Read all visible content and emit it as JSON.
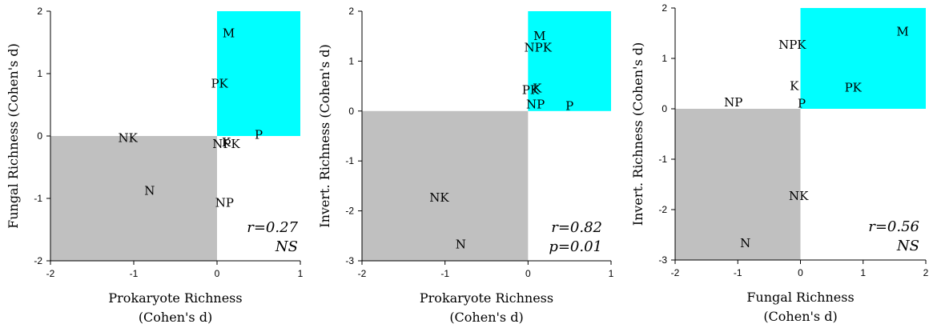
{
  "chart_data": [
    {
      "type": "scatter",
      "xlabel": [
        "Prokaryote Richness",
        "(Cohen's d)"
      ],
      "ylabel": "Fungal Richness (Cohen's d)",
      "xlim": [
        -2,
        1
      ],
      "ylim": [
        -2,
        2
      ],
      "xticks": [
        "-2",
        "-1",
        "0",
        "1"
      ],
      "yticks": [
        "-2",
        "-1",
        "0",
        "1",
        "2"
      ],
      "grid": false,
      "highlight_colors": {
        "positive_quadrant": "#00ffff",
        "negative_quadrant": "#c0c0c0"
      },
      "points": [
        {
          "label": "M",
          "x": 0.14,
          "y": 1.65
        },
        {
          "label": "PK",
          "x": 0.03,
          "y": 0.84
        },
        {
          "label": "P",
          "x": 0.5,
          "y": 0.02
        },
        {
          "label": "NK",
          "x": -1.07,
          "y": -0.03
        },
        {
          "label": "K",
          "x": 0.11,
          "y": -0.1
        },
        {
          "label": "NPK",
          "x": 0.11,
          "y": -0.13
        },
        {
          "label": "N",
          "x": -0.81,
          "y": -0.88
        },
        {
          "label": "NP",
          "x": 0.09,
          "y": -1.07
        }
      ],
      "stats": [
        "r=0.27",
        "NS"
      ]
    },
    {
      "type": "scatter",
      "xlabel": [
        "Prokaryote Richness",
        "(Cohen's d)"
      ],
      "ylabel": "Invert. Richness (Cohen's d)",
      "xlim": [
        -2,
        1
      ],
      "ylim": [
        -3,
        2
      ],
      "xticks": [
        "-2",
        "-1",
        "0",
        "1"
      ],
      "yticks": [
        "-3",
        "-2",
        "-1",
        "0",
        "1",
        "2"
      ],
      "grid": false,
      "highlight_colors": {
        "positive_quadrant": "#00ffff",
        "negative_quadrant": "#c0c0c0"
      },
      "points": [
        {
          "label": "M",
          "x": 0.14,
          "y": 1.5
        },
        {
          "label": "NPK",
          "x": 0.12,
          "y": 1.27
        },
        {
          "label": "PK",
          "x": 0.03,
          "y": 0.42
        },
        {
          "label": "K",
          "x": 0.11,
          "y": 0.45
        },
        {
          "label": "NP",
          "x": 0.09,
          "y": 0.13
        },
        {
          "label": "P",
          "x": 0.5,
          "y": 0.1
        },
        {
          "label": "NK",
          "x": -1.07,
          "y": -1.73
        },
        {
          "label": "N",
          "x": -0.81,
          "y": -2.67
        }
      ],
      "stats": [
        "r=0.82",
        "p=0.01"
      ]
    },
    {
      "type": "scatter",
      "xlabel": [
        "Fungal Richness",
        "(Cohen's d)"
      ],
      "ylabel": "Invert. Richness (Cohen's d)",
      "xlim": [
        -2,
        2
      ],
      "ylim": [
        -3,
        2
      ],
      "xticks": [
        "-2",
        "-1",
        "0",
        "1",
        "2"
      ],
      "yticks": [
        "-3",
        "-2",
        "-1",
        "0",
        "1",
        "2"
      ],
      "grid": false,
      "highlight_colors": {
        "positive_quadrant": "#00ffff",
        "negative_quadrant": "#c0c0c0"
      },
      "points": [
        {
          "label": "M",
          "x": 1.63,
          "y": 1.53
        },
        {
          "label": "NPK",
          "x": -0.13,
          "y": 1.27
        },
        {
          "label": "K",
          "x": -0.1,
          "y": 0.45
        },
        {
          "label": "PK",
          "x": 0.84,
          "y": 0.42
        },
        {
          "label": "NP",
          "x": -1.07,
          "y": 0.13
        },
        {
          "label": "P",
          "x": 0.02,
          "y": 0.1
        },
        {
          "label": "NK",
          "x": -0.03,
          "y": -1.73
        },
        {
          "label": "N",
          "x": -0.88,
          "y": -2.67
        }
      ],
      "stats": [
        "r=0.56",
        "NS"
      ]
    }
  ]
}
